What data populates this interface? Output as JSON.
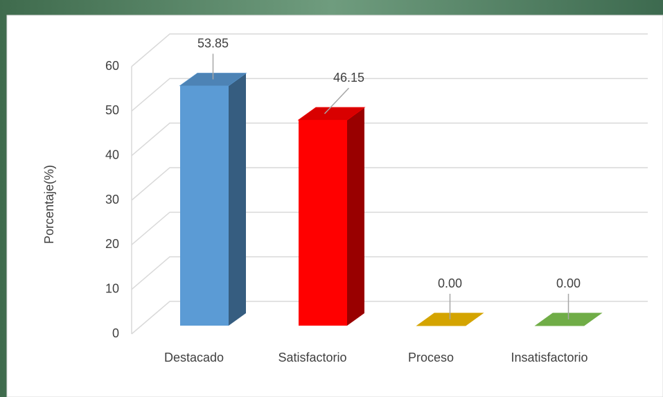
{
  "chart_data": {
    "type": "bar3d",
    "y_label": "Porcentaje(%)",
    "categories": [
      "Destacado",
      "Satisfactorio",
      "Proceso",
      "Insatisfactorio"
    ],
    "values": [
      53.85,
      46.15,
      0,
      0
    ],
    "value_labels": [
      "53.85",
      "46.15",
      "0.00",
      "0.00"
    ],
    "colors": [
      "#5b9bd5",
      "#ff0000",
      "#d4a400",
      "#70ad47"
    ],
    "ylim": [
      0,
      60
    ],
    "yticks": [
      0,
      10,
      20,
      30,
      40,
      50,
      60
    ],
    "grid": true
  }
}
